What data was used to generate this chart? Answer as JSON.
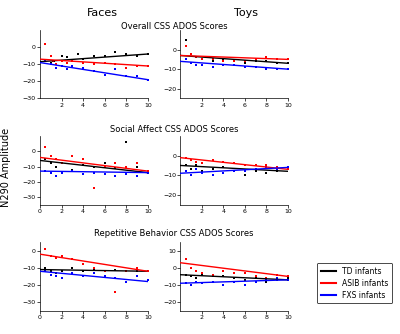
{
  "col_titles": [
    "Faces",
    "Toys"
  ],
  "row_titles": [
    "Overall CSS ADOS Scores",
    "Social Affect CSS ADOS Scores",
    "Repetitive Behavior CSS ADOS Scores"
  ],
  "ylabel": "N290 Amplitude",
  "colors": {
    "TD": "black",
    "ASIB": "red",
    "FXS": "blue"
  },
  "legend_labels": [
    "TD infants",
    "ASIB infants",
    "FXS infants"
  ],
  "plots": [
    {
      "row": 0,
      "col": 0,
      "xlim": [
        0,
        10
      ],
      "ylim": [
        -30,
        10
      ],
      "xticks": [
        2,
        4,
        6,
        8,
        10
      ],
      "yticks": [
        -30,
        -20,
        -10,
        0
      ],
      "TD_x": [
        1,
        1.3,
        2,
        2.5,
        3,
        3.5,
        4,
        5,
        6,
        7,
        8,
        9,
        10
      ],
      "TD_y": [
        -9,
        -8,
        -5,
        -6,
        -8,
        -4,
        -7,
        -5,
        -5,
        -3,
        -4,
        -5,
        -4
      ],
      "TD_line": [
        0,
        10,
        -8.5,
        -4
      ],
      "ASIB_x": [
        0.5,
        1,
        1.2,
        1.5,
        2,
        2.5,
        3,
        4,
        5,
        6,
        7,
        8,
        9,
        10
      ],
      "ASIB_y": [
        2,
        -5,
        -8,
        -10,
        -8,
        -9,
        -8,
        -9,
        -10,
        -9,
        -10,
        -12,
        -11,
        -11
      ],
      "ASIB_line": [
        0,
        10,
        -7,
        -11
      ],
      "FXS_x": [
        0.5,
        1,
        1.5,
        2,
        2.5,
        3,
        4,
        5,
        6,
        7,
        8,
        9,
        10
      ],
      "FXS_y": [
        -8,
        -10,
        -12,
        -11,
        -13,
        -11,
        -12,
        -14,
        -16,
        -13,
        -17,
        -17,
        -19
      ],
      "FXS_line": [
        0,
        10,
        -9,
        -19
      ]
    },
    {
      "row": 0,
      "col": 1,
      "xlim": [
        0,
        10
      ],
      "ylim": [
        -25,
        10
      ],
      "xticks": [
        2,
        4,
        6,
        8,
        10
      ],
      "yticks": [
        -20,
        -10,
        0
      ],
      "TD_x": [
        0.5,
        1,
        1.5,
        2,
        3,
        4,
        5,
        6,
        7,
        8,
        9,
        10
      ],
      "TD_y": [
        5,
        -2,
        -4,
        -5,
        -6,
        -5,
        -6,
        -7,
        -6,
        -6,
        -7,
        -7
      ],
      "TD_line": [
        0,
        10,
        -3,
        -7
      ],
      "ASIB_x": [
        0.5,
        1,
        1.5,
        2,
        3,
        4,
        5,
        6,
        7,
        8,
        9,
        10
      ],
      "ASIB_y": [
        2,
        -2,
        -4,
        -5,
        -5,
        -6,
        -6,
        -6,
        -5,
        -4,
        -5,
        -5
      ],
      "ASIB_line": [
        0,
        10,
        -3,
        -5
      ],
      "FXS_x": [
        0.5,
        1,
        1.5,
        2,
        3,
        4,
        5,
        6,
        7,
        8,
        9,
        10
      ],
      "FXS_y": [
        -5,
        -7,
        -8,
        -8,
        -9,
        -8,
        -8,
        -9,
        -9,
        -10,
        -10,
        -10
      ],
      "FXS_line": [
        0,
        10,
        -6,
        -10
      ]
    },
    {
      "row": 1,
      "col": 0,
      "xlim": [
        0,
        10
      ],
      "ylim": [
        -35,
        10
      ],
      "xticks": [
        0,
        2,
        4,
        6,
        8,
        10
      ],
      "yticks": [
        -30,
        -20,
        -10,
        0
      ],
      "TD_x": [
        0.5,
        1,
        1.5,
        2,
        3,
        4,
        5,
        6,
        7,
        8,
        9,
        10
      ],
      "TD_y": [
        -5,
        -8,
        -10,
        -8,
        -12,
        -9,
        -10,
        -8,
        -11,
        6,
        -10,
        -14
      ],
      "TD_line": [
        0,
        10,
        -6,
        -14
      ],
      "ASIB_x": [
        0.5,
        1,
        1.5,
        2,
        3,
        4,
        5,
        6,
        7,
        8,
        9,
        10
      ],
      "ASIB_y": [
        3,
        -3,
        -5,
        -8,
        -3,
        -5,
        -24,
        -10,
        -8,
        -10,
        -8,
        -13
      ],
      "ASIB_line": [
        0,
        10,
        -4,
        -13
      ],
      "FXS_x": [
        0.5,
        1,
        1.5,
        2,
        3,
        4,
        5,
        6,
        7,
        8,
        9,
        10
      ],
      "FXS_y": [
        -13,
        -14,
        -16,
        -14,
        -13,
        -15,
        -14,
        -15,
        -16,
        -15,
        -16,
        -14
      ],
      "FXS_line": [
        0,
        10,
        -13,
        -14
      ]
    },
    {
      "row": 1,
      "col": 1,
      "xlim": [
        0,
        10
      ],
      "ylim": [
        -25,
        10
      ],
      "xticks": [
        2,
        4,
        6,
        8,
        10
      ],
      "yticks": [
        -20,
        -10,
        0
      ],
      "TD_x": [
        0.5,
        1,
        1.5,
        2,
        3,
        4,
        5,
        6,
        7,
        8,
        9,
        10
      ],
      "TD_y": [
        -5,
        -7,
        -5,
        -8,
        -7,
        -6,
        -8,
        -10,
        -8,
        -9,
        -8,
        -6
      ],
      "TD_line": [
        0,
        10,
        -5,
        -8
      ],
      "ASIB_x": [
        0.5,
        1,
        1.5,
        2,
        3,
        4,
        5,
        6,
        7,
        8,
        9,
        10
      ],
      "ASIB_y": [
        -1,
        -2,
        -3,
        -4,
        -2,
        -3,
        -4,
        -5,
        -5,
        -5,
        -6,
        -7
      ],
      "ASIB_line": [
        0,
        10,
        -1,
        -7
      ],
      "FXS_x": [
        0.5,
        1,
        1.5,
        2,
        3,
        4,
        5,
        6,
        7,
        8,
        9,
        10
      ],
      "FXS_y": [
        -8,
        -10,
        -7,
        -9,
        -10,
        -9,
        -8,
        -8,
        -7,
        -6,
        -7,
        -6
      ],
      "FXS_line": [
        0,
        10,
        -9,
        -6
      ]
    },
    {
      "row": 2,
      "col": 0,
      "xlim": [
        0,
        10
      ],
      "ylim": [
        -35,
        5
      ],
      "xticks": [
        0,
        2,
        4,
        6,
        8,
        10
      ],
      "yticks": [
        -30,
        -20,
        -10,
        0
      ],
      "TD_x": [
        0.5,
        1,
        1.5,
        2,
        3,
        4,
        5,
        6,
        7,
        8,
        9,
        10
      ],
      "TD_y": [
        -10,
        -12,
        -13,
        -12,
        -10,
        -12,
        -11,
        -12,
        -11,
        -12,
        -12,
        -12
      ],
      "TD_line": [
        0,
        10,
        -11,
        -12
      ],
      "ASIB_x": [
        0.5,
        1,
        1.5,
        2,
        3,
        4,
        5,
        6,
        7,
        8,
        9,
        10
      ],
      "ASIB_y": [
        1,
        -3,
        -4,
        -3,
        -5,
        -8,
        -10,
        -12,
        -24,
        -12,
        -10,
        -12
      ],
      "ASIB_line": [
        0,
        10,
        -2,
        -12
      ],
      "FXS_x": [
        0.5,
        1,
        1.5,
        2,
        3,
        4,
        5,
        6,
        7,
        8,
        9,
        10
      ],
      "FXS_y": [
        -12,
        -14,
        -15,
        -16,
        -13,
        -15,
        -13,
        -15,
        -16,
        -18,
        -15,
        -17
      ],
      "FXS_line": [
        0,
        10,
        -12,
        -18
      ]
    },
    {
      "row": 2,
      "col": 1,
      "xlim": [
        0,
        10
      ],
      "ylim": [
        -25,
        15
      ],
      "xticks": [
        2,
        4,
        6,
        8,
        10
      ],
      "yticks": [
        -20,
        -10,
        0,
        10
      ],
      "TD_x": [
        0.5,
        1,
        1.5,
        2,
        3,
        4,
        5,
        6,
        7,
        8,
        9,
        10
      ],
      "TD_y": [
        -4,
        -5,
        -6,
        -4,
        -5,
        -5,
        -6,
        -7,
        -6,
        -8,
        -7,
        -6
      ],
      "TD_line": [
        0,
        10,
        -4,
        -7
      ],
      "ASIB_x": [
        0.5,
        1,
        1.5,
        2,
        3,
        4,
        5,
        6,
        7,
        8,
        9,
        10
      ],
      "ASIB_y": [
        5,
        0,
        -2,
        -3,
        -4,
        -2,
        -3,
        -3,
        -5,
        -6,
        -4,
        -5
      ],
      "ASIB_line": [
        0,
        10,
        3,
        -5
      ],
      "FXS_x": [
        0.5,
        1,
        1.5,
        2,
        3,
        4,
        5,
        6,
        7,
        8,
        9,
        10
      ],
      "FXS_y": [
        -9,
        -10,
        -8,
        -9,
        -8,
        -10,
        -8,
        -10,
        -8,
        -7,
        -6,
        -7
      ],
      "FXS_line": [
        0,
        10,
        -9,
        -7
      ]
    }
  ]
}
